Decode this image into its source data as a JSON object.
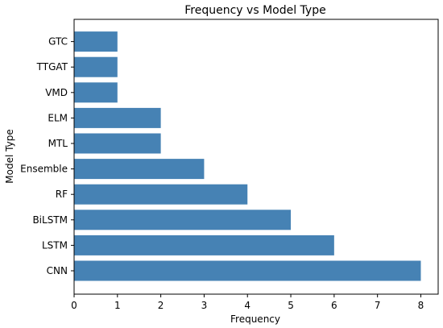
{
  "chart_data": {
    "type": "bar",
    "orientation": "horizontal",
    "title": "Frequency vs Model Type",
    "xlabel": "Frequency",
    "ylabel": "Model Type",
    "categories": [
      "CNN",
      "LSTM",
      "BiLSTM",
      "RF",
      "Ensemble",
      "MTL",
      "ELM",
      "VMD",
      "TTGAT",
      "GTC"
    ],
    "values": [
      8,
      6,
      5,
      4,
      3,
      2,
      2,
      1,
      1,
      1
    ],
    "xlim": [
      0,
      8.4
    ],
    "xticks": [
      "0",
      "1",
      "2",
      "3",
      "4",
      "5",
      "6",
      "7",
      "8"
    ],
    "grid": false,
    "legend": "none",
    "bar_color": "#4682b4"
  }
}
